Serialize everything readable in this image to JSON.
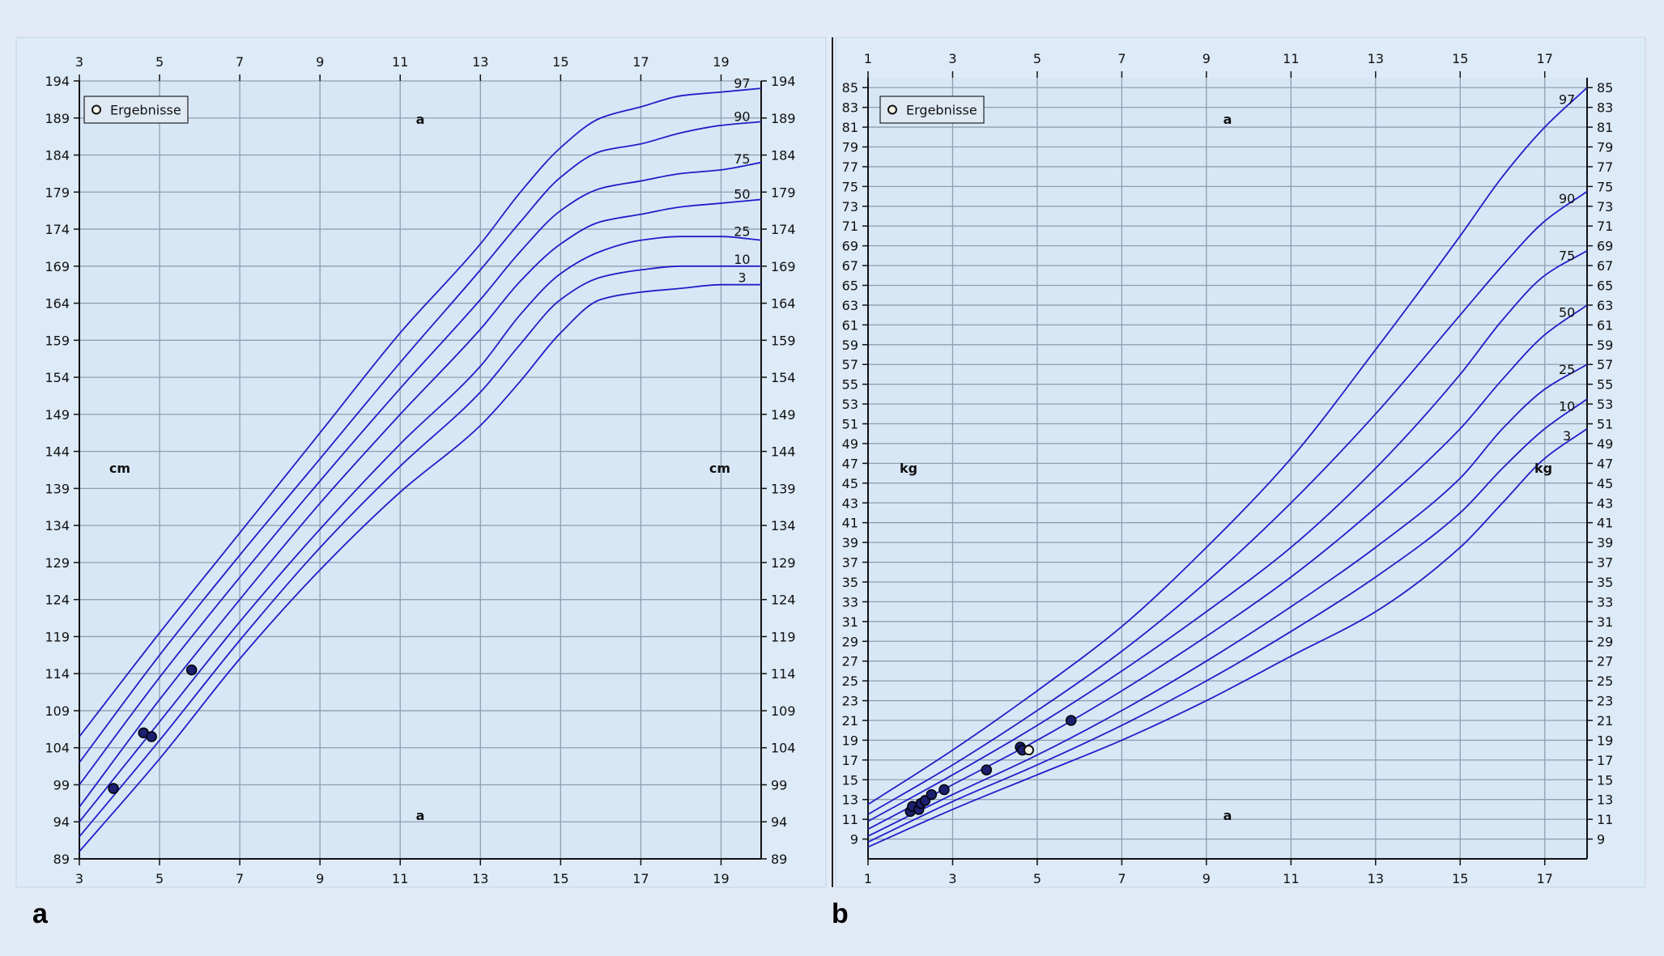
{
  "figure": {
    "panel_a_label": "a",
    "panel_b_label": "b"
  },
  "chart_data": [
    {
      "type": "line",
      "panel": "a",
      "title": "",
      "xlabel": "a",
      "ylabel": "cm",
      "xlim": [
        3,
        20
      ],
      "ylim": [
        89,
        194
      ],
      "x_ticks": [
        "3",
        "5",
        "7",
        "9",
        "11",
        "13",
        "15",
        "17",
        "19"
      ],
      "x_tick_values": [
        3,
        5,
        7,
        9,
        11,
        13,
        15,
        17,
        19
      ],
      "y_ticks": [
        "89",
        "94",
        "99",
        "104",
        "109",
        "114",
        "119",
        "124",
        "129",
        "134",
        "139",
        "144",
        "149",
        "154",
        "159",
        "164",
        "169",
        "174",
        "179",
        "184",
        "189",
        "194"
      ],
      "y_tick_values": [
        89,
        94,
        99,
        104,
        109,
        114,
        119,
        124,
        129,
        134,
        139,
        144,
        149,
        154,
        159,
        164,
        169,
        174,
        179,
        184,
        189,
        194
      ],
      "grid": true,
      "legend": {
        "label": "Ergebnisse",
        "position": "top-left"
      },
      "unit_label": "cm",
      "age_label": "a",
      "line_color": "#1f1fc8",
      "series": [
        {
          "name": "97",
          "x": [
            3,
            5,
            7,
            9,
            11,
            13,
            14,
            15,
            16,
            17,
            18,
            19,
            20
          ],
          "y": [
            105.5,
            119.5,
            133,
            146.5,
            160,
            172,
            179,
            185,
            189,
            190.5,
            192,
            192.5,
            193
          ]
        },
        {
          "name": "90",
          "x": [
            3,
            5,
            7,
            9,
            11,
            13,
            14,
            15,
            16,
            17,
            18,
            19,
            20
          ],
          "y": [
            102,
            116.5,
            130,
            143,
            156,
            168.5,
            175,
            181,
            184.5,
            185.5,
            187,
            188,
            188.5
          ]
        },
        {
          "name": "75",
          "x": [
            3,
            5,
            7,
            9,
            11,
            13,
            14,
            15,
            16,
            17,
            18,
            19,
            20
          ],
          "y": [
            99,
            113.5,
            127,
            140,
            152.5,
            164.5,
            171,
            176.5,
            179.5,
            180.5,
            181.5,
            182,
            183
          ]
        },
        {
          "name": "50",
          "x": [
            3,
            5,
            7,
            9,
            11,
            13,
            14,
            15,
            16,
            17,
            18,
            19,
            20
          ],
          "y": [
            96,
            110.5,
            124,
            137,
            149,
            160.5,
            167,
            172,
            175,
            176,
            177,
            177.5,
            178
          ]
        },
        {
          "name": "25",
          "x": [
            3,
            5,
            7,
            9,
            11,
            13,
            14,
            15,
            16,
            17,
            18,
            19,
            20
          ],
          "y": [
            94,
            107.5,
            121,
            133.5,
            145,
            155.5,
            162.5,
            168,
            171,
            172.5,
            173,
            173,
            172.5
          ]
        },
        {
          "name": "10",
          "x": [
            3,
            5,
            7,
            9,
            11,
            13,
            14,
            15,
            16,
            17,
            18,
            19,
            20
          ],
          "y": [
            92,
            105,
            118.5,
            131,
            142,
            152,
            158.5,
            164.5,
            167.5,
            168.5,
            169,
            169,
            169
          ]
        },
        {
          "name": "3",
          "x": [
            3,
            5,
            7,
            9,
            11,
            13,
            14,
            15,
            16,
            17,
            18,
            19,
            20
          ],
          "y": [
            90,
            102.5,
            116,
            128,
            138.5,
            147.5,
            153.5,
            160,
            164.5,
            165.5,
            166,
            166.5,
            166.5
          ]
        }
      ],
      "points": [
        {
          "x": 3.85,
          "y": 98.5
        },
        {
          "x": 4.6,
          "y": 106
        },
        {
          "x": 4.8,
          "y": 105.5
        },
        {
          "x": 5.8,
          "y": 114.5
        }
      ]
    },
    {
      "type": "line",
      "panel": "b",
      "title": "",
      "xlabel": "a",
      "ylabel": "kg",
      "xlim": [
        1,
        18
      ],
      "ylim": [
        7,
        86
      ],
      "x_ticks": [
        "1",
        "3",
        "5",
        "7",
        "9",
        "11",
        "13",
        "15",
        "17"
      ],
      "x_tick_values": [
        1,
        3,
        5,
        7,
        9,
        11,
        13,
        15,
        17
      ],
      "y_ticks": [
        "9",
        "11",
        "13",
        "15",
        "17",
        "19",
        "21",
        "23",
        "25",
        "27",
        "29",
        "31",
        "33",
        "35",
        "37",
        "39",
        "41",
        "43",
        "45",
        "47",
        "49",
        "51",
        "53",
        "55",
        "57",
        "59",
        "61",
        "63",
        "65",
        "67",
        "69",
        "71",
        "73",
        "75",
        "77",
        "79",
        "81",
        "83",
        "85"
      ],
      "y_tick_values": [
        9,
        11,
        13,
        15,
        17,
        19,
        21,
        23,
        25,
        27,
        29,
        31,
        33,
        35,
        37,
        39,
        41,
        43,
        45,
        47,
        49,
        51,
        53,
        55,
        57,
        59,
        61,
        63,
        65,
        67,
        69,
        71,
        73,
        75,
        77,
        79,
        81,
        83,
        85
      ],
      "grid": true,
      "legend": {
        "label": "Ergebnisse",
        "position": "top-left"
      },
      "unit_label": "kg",
      "age_label": "a",
      "line_color": "#1f1fc8",
      "series": [
        {
          "name": "97",
          "x": [
            1,
            3,
            5,
            7,
            9,
            11,
            13,
            15,
            16,
            17,
            18
          ],
          "y": [
            12.5,
            18,
            24,
            30.5,
            38.5,
            47.5,
            58.5,
            70,
            76,
            81,
            85
          ]
        },
        {
          "name": "90",
          "x": [
            1,
            3,
            5,
            7,
            9,
            11,
            13,
            15,
            16,
            17,
            18
          ],
          "y": [
            11.5,
            16.5,
            22,
            28,
            35,
            43,
            52,
            62,
            67,
            71.5,
            74.5
          ]
        },
        {
          "name": "75",
          "x": [
            1,
            3,
            5,
            7,
            9,
            11,
            13,
            15,
            16,
            17,
            18
          ],
          "y": [
            10.8,
            15.5,
            20.5,
            26,
            32,
            38.5,
            46.5,
            56,
            61.5,
            66,
            68.5
          ]
        },
        {
          "name": "50",
          "x": [
            1,
            3,
            5,
            7,
            9,
            11,
            13,
            15,
            16,
            17,
            18
          ],
          "y": [
            10,
            14.5,
            19,
            24,
            29.5,
            35.5,
            42.5,
            50.5,
            55.5,
            60,
            63
          ]
        },
        {
          "name": "25",
          "x": [
            1,
            3,
            5,
            7,
            9,
            11,
            13,
            15,
            16,
            17,
            18
          ],
          "y": [
            9.3,
            13.5,
            17.5,
            22,
            27,
            32.5,
            38.5,
            45.5,
            50.5,
            54.5,
            57
          ]
        },
        {
          "name": "10",
          "x": [
            1,
            3,
            5,
            7,
            9,
            11,
            13,
            15,
            16,
            17,
            18
          ],
          "y": [
            8.7,
            12.8,
            16.5,
            20.5,
            25,
            30,
            35.5,
            42,
            46.5,
            50.5,
            53.5
          ]
        },
        {
          "name": "3",
          "x": [
            1,
            3,
            5,
            7,
            9,
            11,
            13,
            15,
            16,
            17,
            18
          ],
          "y": [
            8.2,
            12,
            15.5,
            19,
            23,
            27.5,
            32,
            38.5,
            43,
            47.5,
            50.5
          ]
        }
      ],
      "points": [
        {
          "x": 2.0,
          "y": 11.8
        },
        {
          "x": 2.05,
          "y": 12.3
        },
        {
          "x": 2.2,
          "y": 12.0
        },
        {
          "x": 2.25,
          "y": 12.6
        },
        {
          "x": 2.35,
          "y": 12.9
        },
        {
          "x": 2.5,
          "y": 13.5
        },
        {
          "x": 2.8,
          "y": 14.0
        },
        {
          "x": 3.8,
          "y": 16.0
        },
        {
          "x": 4.6,
          "y": 18.3
        },
        {
          "x": 4.65,
          "y": 18.0
        },
        {
          "x": 4.8,
          "y": 18.0,
          "hollow": true
        },
        {
          "x": 5.8,
          "y": 21.0
        }
      ]
    }
  ]
}
